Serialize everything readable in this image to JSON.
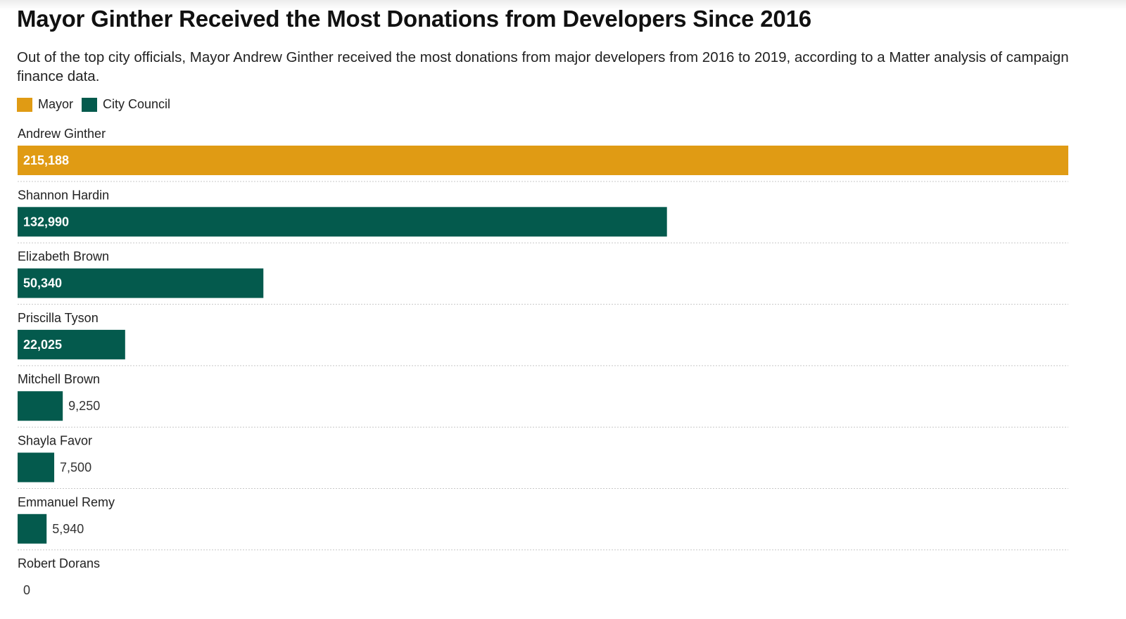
{
  "chart_data": {
    "type": "bar",
    "orientation": "horizontal",
    "title": "Mayor Ginther Received the Most Donations from Developers Since 2016",
    "subtitle": "Out of the top city officials, Mayor Andrew Ginther received the most donations from major developers from 2016 to 2019, according to a Matter analysis of campaign finance data.",
    "legend": [
      {
        "name": "Mayor",
        "color": "#e09b14"
      },
      {
        "name": "City Council",
        "color": "#045a4d"
      }
    ],
    "legend_position": "top-left",
    "grid": false,
    "row_separators": "dotted",
    "xlim": [
      0,
      215188
    ],
    "categories": [
      "Andrew Ginther",
      "Shannon Hardin",
      "Elizabeth Brown",
      "Priscilla Tyson",
      "Mitchell Brown",
      "Shayla Favor",
      "Emmanuel Remy",
      "Robert Dorans"
    ],
    "values": [
      215188,
      132990,
      50340,
      22025,
      9250,
      7500,
      5940,
      0
    ],
    "value_labels": [
      "215,188",
      "132,990",
      "50,340",
      "22,025",
      "9,250",
      "7,500",
      "5,940",
      "0"
    ],
    "groups": [
      "Mayor",
      "City Council",
      "City Council",
      "City Council",
      "City Council",
      "City Council",
      "City Council",
      "City Council"
    ]
  }
}
